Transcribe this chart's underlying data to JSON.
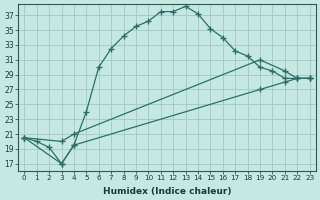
{
  "xlabel": "Humidex (Indice chaleur)",
  "bg_color": "#c6e8e2",
  "grid_color": "#a8ccc8",
  "line_color": "#2a7068",
  "xlim": [
    -0.5,
    23.5
  ],
  "ylim": [
    16.0,
    38.5
  ],
  "xticks": [
    0,
    1,
    2,
    3,
    4,
    5,
    6,
    7,
    8,
    9,
    10,
    11,
    12,
    13,
    14,
    15,
    16,
    17,
    18,
    19,
    20,
    21,
    22,
    23
  ],
  "yticks": [
    17,
    19,
    21,
    23,
    25,
    27,
    29,
    31,
    33,
    35,
    37
  ],
  "series1_x": [
    0,
    1,
    2,
    3,
    4,
    5,
    6,
    7,
    8,
    9,
    10,
    11,
    12,
    13,
    14,
    15,
    16,
    17,
    18,
    19,
    20,
    21,
    22,
    23
  ],
  "series1_y": [
    20.5,
    20.0,
    19.2,
    17.0,
    19.5,
    24.0,
    30.0,
    32.5,
    34.2,
    35.5,
    36.2,
    37.5,
    37.5,
    38.2,
    37.2,
    35.2,
    34.0,
    32.2,
    31.5,
    30.0,
    29.5,
    28.5,
    28.5,
    28.5
  ],
  "series2_x": [
    0,
    3,
    4,
    19,
    21,
    22,
    23
  ],
  "series2_y": [
    20.5,
    20.0,
    21.0,
    31.0,
    29.5,
    28.5,
    28.5
  ],
  "series3_x": [
    0,
    3,
    4,
    19,
    21,
    22,
    23
  ],
  "series3_y": [
    20.5,
    17.0,
    19.5,
    27.0,
    28.0,
    28.5,
    28.5
  ]
}
